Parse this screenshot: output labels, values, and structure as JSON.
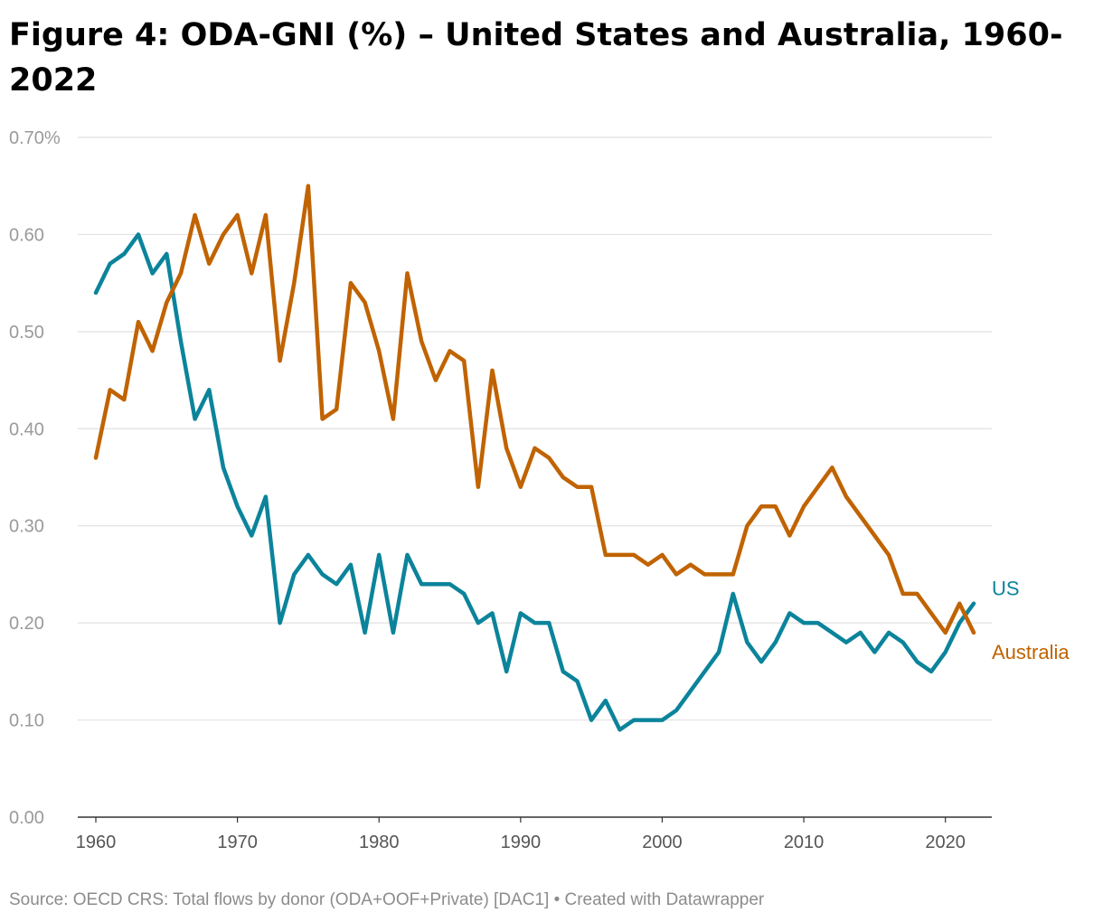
{
  "title": "Figure 4: ODA-GNI (%) – United States and Australia, 1960-2022",
  "source": "Source: OECD CRS: Total flows by donor (ODA+OOF+Private) [DAC1] • Created with Datawrapper",
  "chart_data": {
    "type": "line",
    "title": "Figure 4: ODA-GNI (%) – United States and Australia, 1960-2022",
    "xlabel": "",
    "ylabel": "",
    "xlim": [
      1960,
      2022
    ],
    "ylim": [
      0,
      0.7
    ],
    "y_ticks": [
      "0.00",
      "0.10",
      "0.20",
      "0.30",
      "0.40",
      "0.50",
      "0.60",
      "0.70%"
    ],
    "x_ticks": [
      "1960",
      "1970",
      "1980",
      "1990",
      "2000",
      "2010",
      "2020"
    ],
    "grid": "horizontal",
    "legend": "direct labels at line ends (right)",
    "x": [
      1960,
      1961,
      1962,
      1963,
      1964,
      1965,
      1966,
      1967,
      1968,
      1969,
      1970,
      1971,
      1972,
      1973,
      1974,
      1975,
      1976,
      1977,
      1978,
      1979,
      1980,
      1981,
      1982,
      1983,
      1984,
      1985,
      1986,
      1987,
      1988,
      1989,
      1990,
      1991,
      1992,
      1993,
      1994,
      1995,
      1996,
      1997,
      1998,
      1999,
      2000,
      2001,
      2002,
      2003,
      2004,
      2005,
      2006,
      2007,
      2008,
      2009,
      2010,
      2011,
      2012,
      2013,
      2014,
      2015,
      2016,
      2017,
      2018,
      2019,
      2020,
      2021,
      2022
    ],
    "series": [
      {
        "name": "US",
        "color": "#0b849b",
        "values": [
          0.54,
          0.57,
          0.58,
          0.6,
          0.56,
          0.58,
          0.49,
          0.41,
          0.44,
          0.36,
          0.32,
          0.29,
          0.33,
          0.2,
          0.25,
          0.27,
          0.25,
          0.24,
          0.26,
          0.19,
          0.27,
          0.19,
          0.27,
          0.24,
          0.24,
          0.24,
          0.23,
          0.2,
          0.21,
          0.15,
          0.21,
          0.2,
          0.2,
          0.15,
          0.14,
          0.1,
          0.12,
          0.09,
          0.1,
          0.1,
          0.1,
          0.11,
          0.13,
          0.15,
          0.17,
          0.23,
          0.18,
          0.16,
          0.18,
          0.21,
          0.2,
          0.2,
          0.19,
          0.18,
          0.19,
          0.17,
          0.19,
          0.18,
          0.16,
          0.15,
          0.17,
          0.2,
          0.22
        ]
      },
      {
        "name": "Australia",
        "color": "#c06300",
        "values": [
          0.37,
          0.44,
          0.43,
          0.51,
          0.48,
          0.53,
          0.56,
          0.62,
          0.57,
          0.6,
          0.62,
          0.56,
          0.62,
          0.47,
          0.55,
          0.65,
          0.41,
          0.42,
          0.55,
          0.53,
          0.48,
          0.41,
          0.56,
          0.49,
          0.45,
          0.48,
          0.47,
          0.34,
          0.46,
          0.38,
          0.34,
          0.38,
          0.37,
          0.35,
          0.34,
          0.34,
          0.27,
          0.27,
          0.27,
          0.26,
          0.27,
          0.25,
          0.26,
          0.25,
          0.25,
          0.25,
          0.3,
          0.32,
          0.32,
          0.29,
          0.32,
          0.34,
          0.36,
          0.33,
          0.31,
          0.29,
          0.27,
          0.23,
          0.23,
          0.21,
          0.19,
          0.22,
          0.19
        ]
      }
    ]
  }
}
